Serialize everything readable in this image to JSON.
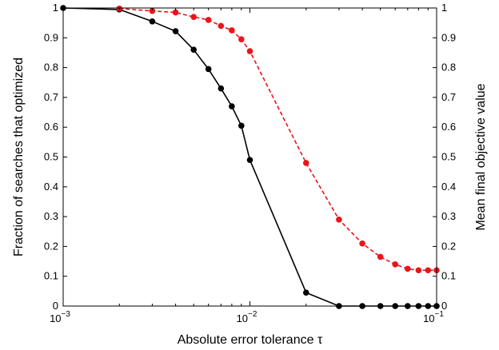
{
  "chart_data": {
    "type": "line",
    "xlabel": "Absolute error tolerance τ",
    "ylabel_left": "Fraction of searches that optimized",
    "ylabel_right": "Mean final objective value",
    "x_scale": "log",
    "xlim": [
      0.001,
      0.1
    ],
    "ylim": [
      0,
      1
    ],
    "x_ticks": [
      {
        "value": 0.001,
        "base": "10",
        "exp": "−3"
      },
      {
        "value": 0.01,
        "base": "10",
        "exp": "−2"
      },
      {
        "value": 0.1,
        "base": "10",
        "exp": "−1"
      }
    ],
    "y_ticks": [
      "0",
      "0.1",
      "0.2",
      "0.3",
      "0.4",
      "0.5",
      "0.6",
      "0.7",
      "0.8",
      "0.9",
      "1"
    ],
    "grid": false,
    "legend": "none",
    "series": [
      {
        "axis": "left",
        "color": "#000000",
        "line_style": "solid",
        "x": [
          0.001,
          0.002,
          0.003,
          0.004,
          0.005,
          0.006,
          0.007,
          0.008,
          0.009,
          0.01,
          0.02,
          0.03,
          0.04,
          0.05,
          0.06,
          0.07,
          0.08,
          0.09,
          0.1
        ],
        "y": [
          1.0,
          0.995,
          0.955,
          0.922,
          0.86,
          0.795,
          0.73,
          0.67,
          0.605,
          0.49,
          0.045,
          0.0,
          0.0,
          0.0,
          0.0,
          0.0,
          0.0,
          0.0,
          0.0
        ]
      },
      {
        "axis": "right",
        "color": "#e8151b",
        "line_style": "dashed",
        "x": [
          0.002,
          0.003,
          0.004,
          0.005,
          0.006,
          0.007,
          0.008,
          0.009,
          0.01,
          0.02,
          0.03,
          0.04,
          0.05,
          0.06,
          0.07,
          0.08,
          0.09,
          0.1
        ],
        "y": [
          0.998,
          0.99,
          0.985,
          0.97,
          0.96,
          0.94,
          0.925,
          0.895,
          0.855,
          0.48,
          0.29,
          0.21,
          0.165,
          0.14,
          0.125,
          0.12,
          0.12,
          0.12
        ]
      }
    ]
  }
}
